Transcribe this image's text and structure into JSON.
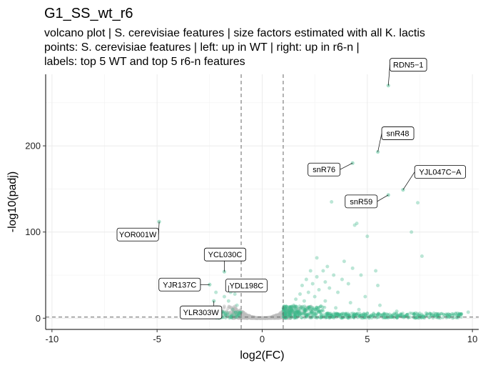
{
  "title": "G1_SS_wt_r6",
  "subtitle_lines": [
    "volcano plot | S. cerevisiae features | size factors estimated with all K. lactis",
    "points: S. cerevisiae features | left: up in WT | right: up in r6-n |",
    "labels: top 5 WT and top 5 r6-n features"
  ],
  "chart_data": {
    "type": "scatter",
    "xlabel": "log2(FC)",
    "ylabel": "-log10(padj)",
    "xlim": [
      -10.3,
      10.3
    ],
    "ylim": [
      -13,
      283
    ],
    "xticks": [
      -10,
      -5,
      0,
      5,
      10
    ],
    "yticks": [
      0,
      100,
      200
    ],
    "grid": true,
    "vlines": [
      -1,
      1
    ],
    "hline": 1.3,
    "colors": {
      "significant": "#3db88a",
      "nonsignificant": "#bdbdbd"
    },
    "labeled_points": [
      {
        "label": "RDN5−1",
        "x": 6.0,
        "y": 270
      },
      {
        "label": "snR48",
        "x": 5.5,
        "y": 193
      },
      {
        "label": "snR76",
        "x": 4.3,
        "y": 180
      },
      {
        "label": "YJL047C−A",
        "x": 6.7,
        "y": 149
      },
      {
        "label": "snR59",
        "x": 6.0,
        "y": 143
      },
      {
        "label": "YOR001W",
        "x": -4.9,
        "y": 112
      },
      {
        "label": "YCL030C",
        "x": -1.8,
        "y": 54
      },
      {
        "label": "YJR137C",
        "x": -2.5,
        "y": 39
      },
      {
        "label": "YDL198C",
        "x": -1.6,
        "y": 38
      },
      {
        "label": "YLR303W",
        "x": -2.3,
        "y": 20
      }
    ],
    "significant_points": [
      [
        3.3,
        135
      ],
      [
        7.4,
        134
      ],
      [
        4.5,
        110
      ],
      [
        4.4,
        108
      ],
      [
        5.0,
        95
      ],
      [
        7.1,
        100
      ],
      [
        7.6,
        72
      ],
      [
        2.6,
        70
      ],
      [
        3.9,
        66
      ],
      [
        3.1,
        60
      ],
      [
        4.3,
        58
      ],
      [
        5.4,
        55
      ],
      [
        2.3,
        55
      ],
      [
        2.9,
        55
      ],
      [
        4.7,
        50
      ],
      [
        3.4,
        50
      ],
      [
        2.6,
        48
      ],
      [
        2.1,
        45
      ],
      [
        3.8,
        45
      ],
      [
        3.0,
        42
      ],
      [
        2.4,
        40
      ],
      [
        1.9,
        38
      ],
      [
        4.1,
        40
      ],
      [
        5.5,
        38
      ],
      [
        3.2,
        35
      ],
      [
        2.7,
        33
      ],
      [
        2.2,
        30
      ],
      [
        1.8,
        28
      ],
      [
        3.6,
        30
      ],
      [
        4.9,
        25
      ],
      [
        2.5,
        25
      ],
      [
        1.6,
        22
      ],
      [
        2.0,
        20
      ],
      [
        3.0,
        20
      ],
      [
        4.2,
        18
      ],
      [
        5.6,
        15
      ],
      [
        1.5,
        15
      ],
      [
        2.8,
        14
      ],
      [
        3.5,
        12
      ],
      [
        4.6,
        10
      ],
      [
        6.4,
        8
      ],
      [
        7.8,
        6
      ],
      [
        8.4,
        5
      ],
      [
        9.2,
        5
      ],
      [
        9.8,
        7
      ],
      [
        8.9,
        4
      ],
      [
        6.9,
        4
      ],
      [
        7.3,
        6
      ],
      [
        5.8,
        4
      ],
      [
        -1.5,
        30
      ],
      [
        -2.2,
        30
      ],
      [
        -1.8,
        25
      ],
      [
        -1.6,
        20
      ],
      [
        -1.2,
        15
      ],
      [
        -2.6,
        12
      ],
      [
        -1.4,
        10
      ],
      [
        -1.9,
        8
      ],
      [
        -1.1,
        6
      ],
      [
        -1.3,
        28
      ]
    ]
  }
}
